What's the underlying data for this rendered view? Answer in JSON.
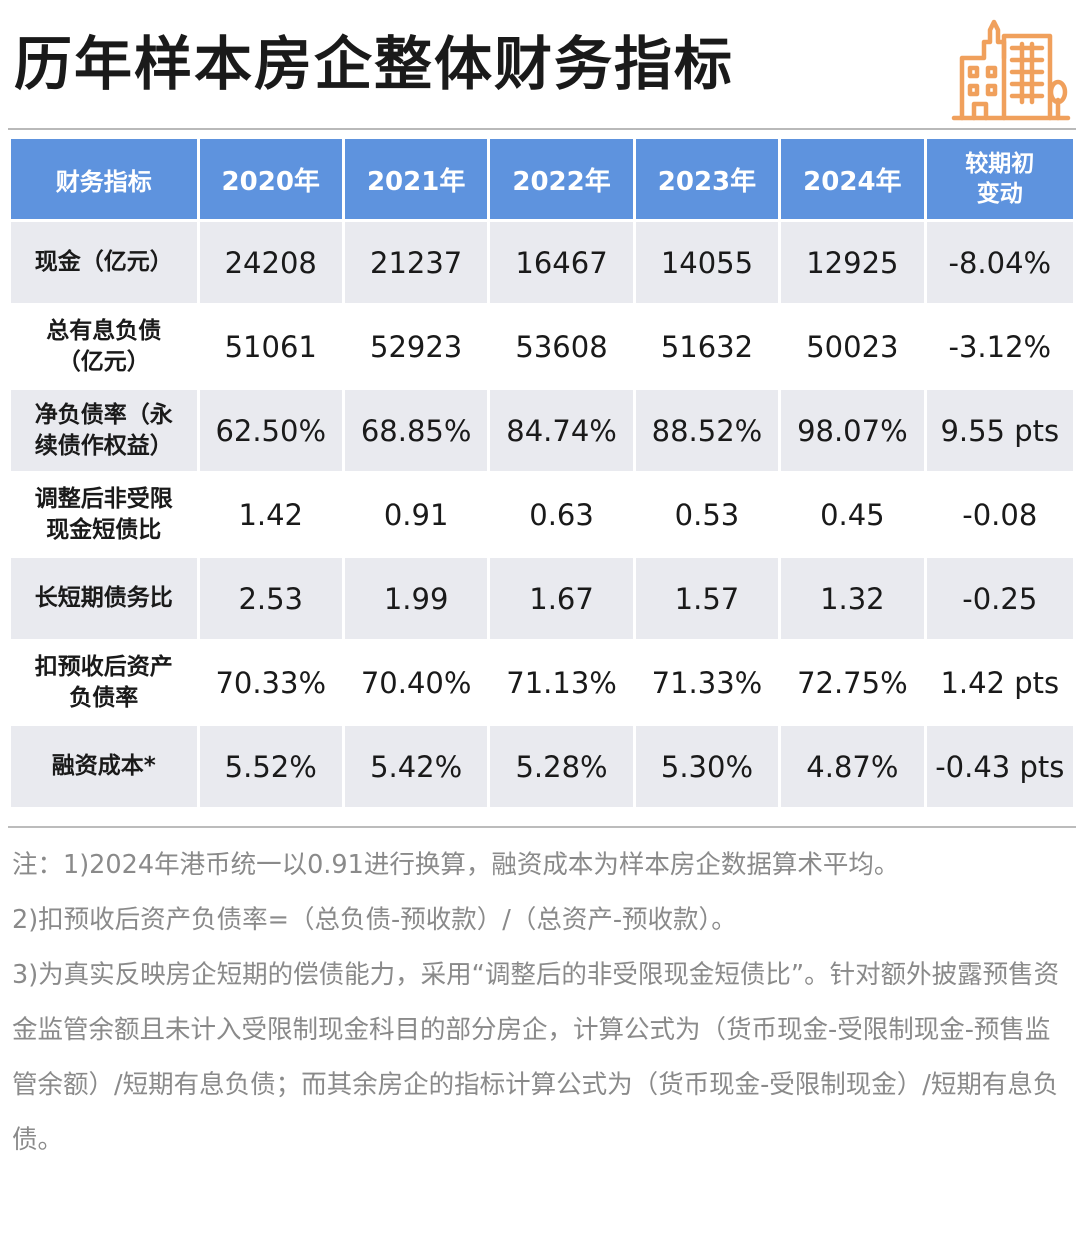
{
  "title": "历年样本房企整体财务指标",
  "table": {
    "headers": [
      "财务指标",
      "2020年",
      "2021年",
      "2022年",
      "2023年",
      "2024年",
      "较期初变动"
    ],
    "rows": [
      {
        "label": "现金（亿元）",
        "values": [
          "24208",
          "21237",
          "16467",
          "14055",
          "12925",
          "-8.04%"
        ]
      },
      {
        "label": "总有息负债（亿元）",
        "values": [
          "51061",
          "52923",
          "53608",
          "51632",
          "50023",
          "-3.12%"
        ]
      },
      {
        "label": "净负债率（永续债作权益）",
        "values": [
          "62.50%",
          "68.85%",
          "84.74%",
          "88.52%",
          "98.07%",
          "9.55 pts"
        ]
      },
      {
        "label": "调整后非受限现金短债比",
        "values": [
          "1.42",
          "0.91",
          "0.63",
          "0.53",
          "0.45",
          "-0.08"
        ]
      },
      {
        "label": "长短期债务比",
        "values": [
          "2.53",
          "1.99",
          "1.67",
          "1.57",
          "1.32",
          "-0.25"
        ]
      },
      {
        "label": "扣预收后资产负债率",
        "values": [
          "70.33%",
          "70.40%",
          "71.13%",
          "71.33%",
          "72.75%",
          "1.42 pts"
        ]
      },
      {
        "label": "融资成本*",
        "values": [
          "5.52%",
          "5.42%",
          "5.28%",
          "5.30%",
          "4.87%",
          "-0.43 pts"
        ]
      }
    ]
  },
  "notes": [
    "注：1)2024年港币统一以0.91进行换算，融资成本为样本房企数据算术平均。",
    "2)扣预收后资产负债率=（总负债-预收款）/（总资产-预收款）。",
    "3)为真实反映房企短期的偿债能力，采用“调整后的非受限现金短债比”。针对额外披露预售资金监管余额且未计入受限制现金科目的部分房企，计算公式为（货币现金-受限制现金-预售监管余额）/短期有息负债；而其余房企的指标计算公式为（货币现金-受限制现金）/短期有息负债。"
  ],
  "colors": {
    "header_bg": "#5e93de",
    "row_alt_bg": "#e9eaef",
    "logo_orange": "#f0a05c"
  },
  "icons": {
    "logo": "city-buildings-icon"
  }
}
